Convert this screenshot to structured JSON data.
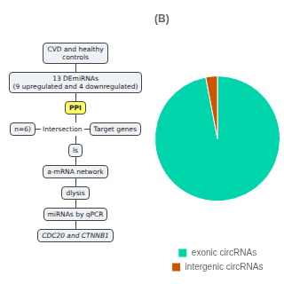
{
  "chart_data": {
    "type": "pie",
    "title": "(B)",
    "categories": [
      "exonic circRNAs",
      "intergenic circRNAs"
    ],
    "values": [
      97,
      3
    ],
    "colors": [
      "#00D4AA",
      "#CC5500"
    ],
    "legend": "bottom",
    "annotations": [
      "CVD and healthy\ncontrols",
      "13 DEmiRNAs\n(9 upregulated and 4 downregulated)",
      "PPI",
      "n=6)",
      "Intersection",
      "Target genes",
      "ls",
      "a-mRNA network",
      "dlysis",
      "miRNAs by qPCR",
      "CDC20 and CTNNB1"
    ]
  }
}
